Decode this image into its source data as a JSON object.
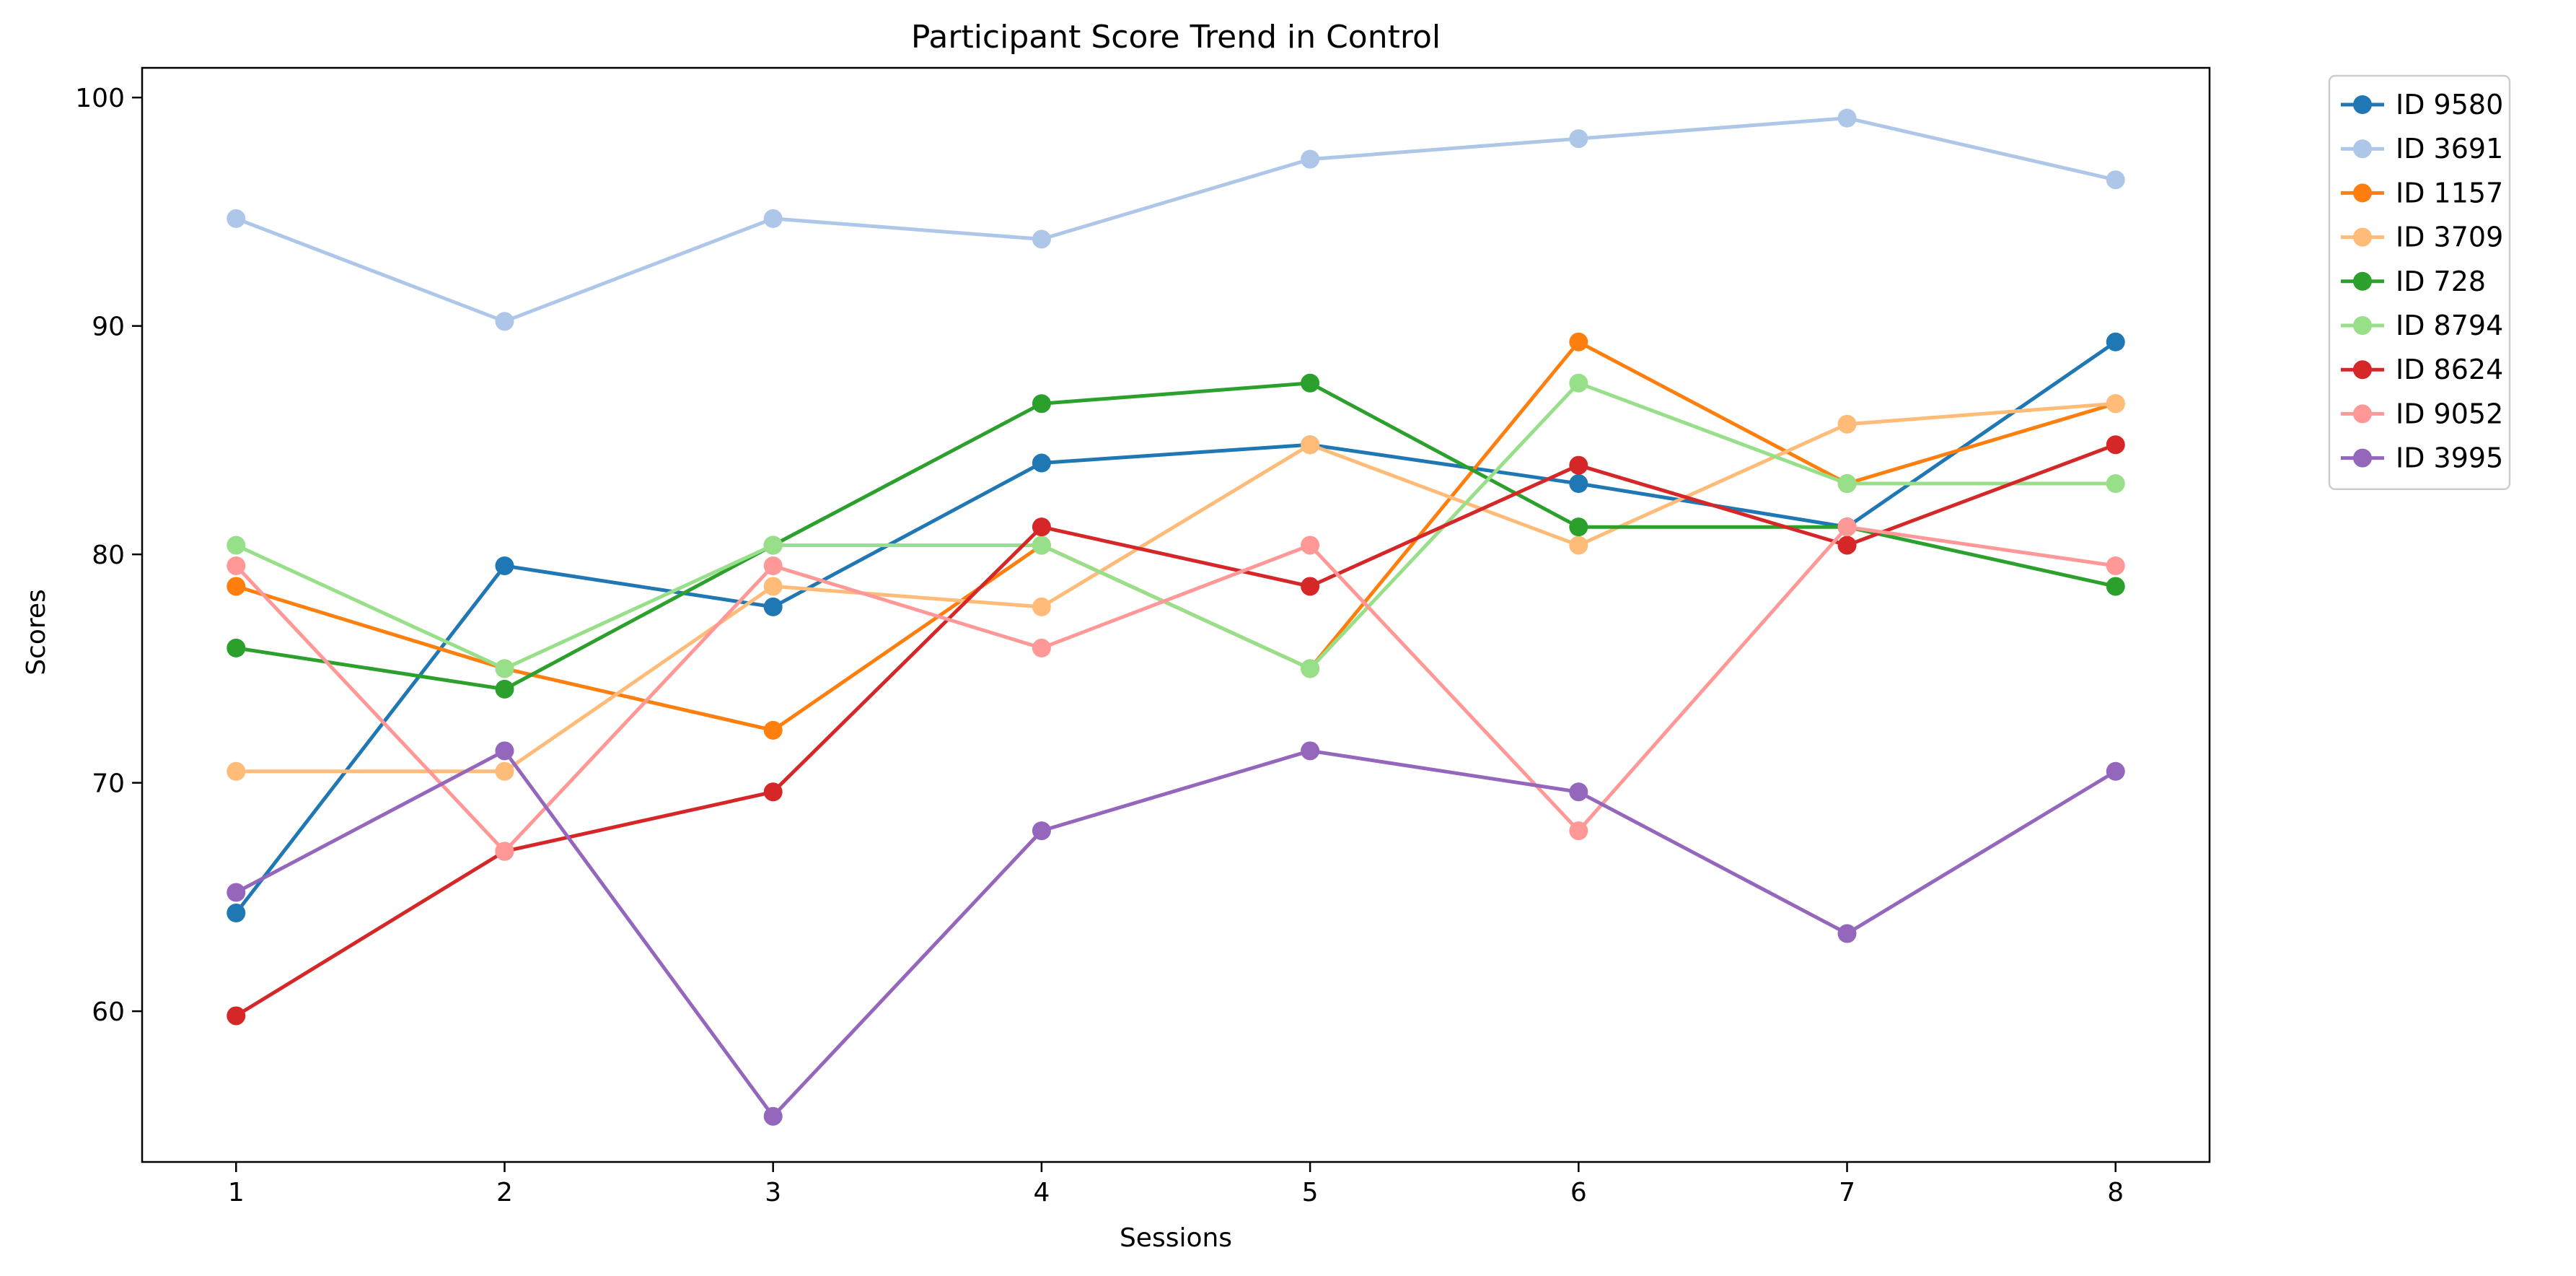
{
  "chart_data": {
    "type": "line",
    "title": "Participant Score Trend in Control",
    "xlabel": "Sessions",
    "ylabel": "Scores",
    "x": [
      1,
      2,
      3,
      4,
      5,
      6,
      7,
      8
    ],
    "xlim": [
      0.65,
      8.35
    ],
    "ylim": [
      53.4,
      101.3
    ],
    "yticks": [
      60,
      70,
      80,
      90,
      100
    ],
    "grid": false,
    "legend_position": "outside-top-right",
    "series": [
      {
        "name": "ID 9580",
        "color": "#1f77b4",
        "values": [
          64.3,
          79.5,
          77.7,
          84.0,
          84.8,
          83.1,
          81.2,
          89.3
        ]
      },
      {
        "name": "ID 3691",
        "color": "#aec7e8",
        "values": [
          94.7,
          90.2,
          94.7,
          93.8,
          97.3,
          98.2,
          99.1,
          96.4
        ]
      },
      {
        "name": "ID 1157",
        "color": "#ff7f0e",
        "values": [
          78.6,
          75.0,
          72.3,
          80.4,
          75.0,
          89.3,
          83.1,
          86.6
        ]
      },
      {
        "name": "ID 3709",
        "color": "#ffbb78",
        "values": [
          70.5,
          70.5,
          78.6,
          77.7,
          84.8,
          80.4,
          85.7,
          86.6
        ]
      },
      {
        "name": "ID 728",
        "color": "#2ca02c",
        "values": [
          75.9,
          74.1,
          80.4,
          86.6,
          87.5,
          81.2,
          81.2,
          78.6
        ]
      },
      {
        "name": "ID 8794",
        "color": "#98df8a",
        "values": [
          80.4,
          75.0,
          80.4,
          80.4,
          75.0,
          87.5,
          83.1,
          83.1
        ]
      },
      {
        "name": "ID 8624",
        "color": "#d62728",
        "values": [
          59.8,
          67.0,
          69.6,
          81.2,
          78.6,
          83.9,
          80.4,
          84.8
        ]
      },
      {
        "name": "ID 9052",
        "color": "#ff9896",
        "values": [
          79.5,
          67.0,
          79.5,
          75.9,
          80.4,
          67.9,
          81.2,
          79.5
        ]
      },
      {
        "name": "ID 3995",
        "color": "#9467bd",
        "values": [
          65.2,
          71.4,
          55.4,
          67.9,
          71.4,
          69.6,
          63.4,
          70.5
        ]
      }
    ]
  }
}
